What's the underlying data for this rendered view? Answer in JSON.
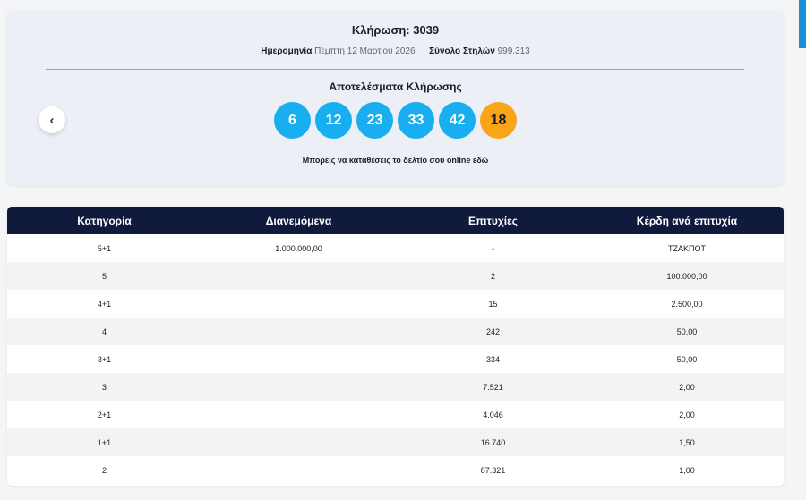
{
  "draw": {
    "title": "Κλήρωση: 3039",
    "date_label": "Ημερομηνία",
    "date_value": "Πέμπτη 12 Μαρτίου 2026",
    "columns_label": "Σύνολο Στηλών",
    "columns_value": "999.313",
    "results_title": "Αποτελέσματα Κλήρωσης",
    "numbers": [
      "6",
      "12",
      "23",
      "33",
      "42"
    ],
    "bonus": "18",
    "prev_icon": "‹",
    "online_text": "Μπορείς να καταθέσεις το δελτίο σου online εδώ"
  },
  "colors": {
    "ball": "#18aef0",
    "bonus_ball": "#f9a51a",
    "header_bg": "#0f1a3d",
    "accent_bar": "#1b8fd6"
  },
  "table": {
    "headers": [
      "Κατηγορία",
      "Διανεμόμενα",
      "Επιτυχίες",
      "Κέρδη ανά επιτυχία"
    ],
    "rows": [
      [
        "5+1",
        "1.000.000,00",
        "-",
        "ΤΖΑΚΠΟΤ"
      ],
      [
        "5",
        "",
        "2",
        "100.000,00"
      ],
      [
        "4+1",
        "",
        "15",
        "2.500,00"
      ],
      [
        "4",
        "",
        "242",
        "50,00"
      ],
      [
        "3+1",
        "",
        "334",
        "50,00"
      ],
      [
        "3",
        "",
        "7.521",
        "2,00"
      ],
      [
        "2+1",
        "",
        "4.046",
        "2,00"
      ],
      [
        "1+1",
        "",
        "16.740",
        "1,50"
      ],
      [
        "2",
        "",
        "87.321",
        "1,00"
      ]
    ]
  }
}
